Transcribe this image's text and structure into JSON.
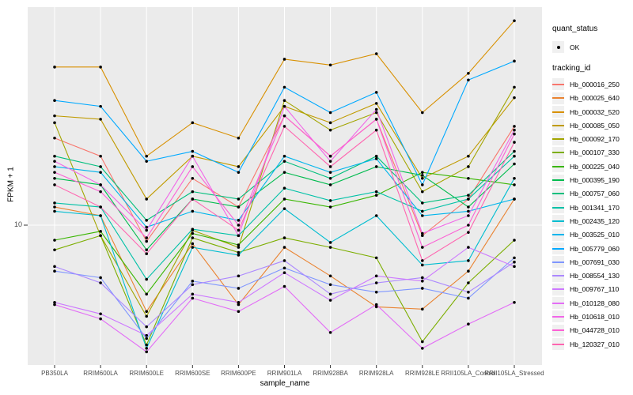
{
  "chart_data": {
    "type": "line",
    "title": "",
    "xlabel": "sample_name",
    "ylabel": "FPKM + 1",
    "y_scale": "log10",
    "y_tick_labels": [
      "10"
    ],
    "grid": "vertical gridline per category, horizontal gridline at y=10, gray panel",
    "legend_position": "right",
    "point_shape": "filled black dot at every data point (quant_status OK)",
    "categories": [
      "PB350LA",
      "RRIM600LA",
      "RRIM600LE",
      "RRIM600SE",
      "RRIM600PE",
      "RRIM901LA",
      "RRIM928BA",
      "RRIM928LA",
      "RRIM928LE",
      "RRII105LA_Control",
      "RRII105LA_Stressed"
    ],
    "series": [
      {
        "name": "Hb_000016_250",
        "color": "#F8766D",
        "values": [
          24,
          20,
          8.5,
          16,
          12,
          30,
          20,
          29,
          9,
          13,
          27
        ]
      },
      {
        "name": "Hb_000025_640",
        "color": "#EA8331",
        "values": [
          12,
          11,
          4.2,
          8.3,
          4.5,
          8,
          6,
          4.4,
          4.3,
          6.3,
          13
        ]
      },
      {
        "name": "Hb_000032_520",
        "color": "#D89000",
        "values": [
          49,
          49,
          20,
          28,
          24,
          53,
          50,
          56,
          31,
          46,
          78
        ]
      },
      {
        "name": "Hb_000085_050",
        "color": "#C09B00",
        "values": [
          30,
          29,
          13,
          20,
          18,
          33,
          28,
          34,
          16,
          20,
          36
        ]
      },
      {
        "name": "Hb_000092_170",
        "color": "#A3A500",
        "values": [
          28,
          9,
          4,
          9.5,
          8,
          35,
          26,
          31,
          14,
          18,
          40
        ]
      },
      {
        "name": "Hb_000107_330",
        "color": "#7CAE00",
        "values": [
          7.8,
          9,
          3,
          8.8,
          7.6,
          8.8,
          8,
          7.2,
          3.1,
          5.6,
          8.6
        ]
      },
      {
        "name": "Hb_000225_040",
        "color": "#39B600",
        "values": [
          8.6,
          9.4,
          5,
          9.2,
          8.2,
          13,
          12,
          13.5,
          17,
          16,
          15
        ]
      },
      {
        "name": "Hb_000395_190",
        "color": "#00BB4E",
        "values": [
          16,
          15,
          7.8,
          13,
          12,
          17,
          15,
          18,
          16.5,
          12,
          18.5
        ]
      },
      {
        "name": "Hb_000757_060",
        "color": "#00BF7D",
        "values": [
          20,
          18,
          10.5,
          14,
          13,
          19,
          16,
          20,
          12.5,
          13.5,
          21
        ]
      },
      {
        "name": "Hb_001341_170",
        "color": "#00C1A7",
        "values": [
          12.5,
          12,
          5.8,
          9.6,
          9,
          14.5,
          12.8,
          14,
          11.5,
          13,
          20
        ]
      },
      {
        "name": "Hb_002435_120",
        "color": "#00BDD0",
        "values": [
          11.5,
          11,
          2.9,
          8,
          7.4,
          11.8,
          8.4,
          11,
          6.7,
          7,
          16
        ]
      },
      {
        "name": "Hb_003525_010",
        "color": "#00B5EC",
        "values": [
          18,
          17,
          9.8,
          11.5,
          10.5,
          20,
          17,
          19.5,
          11,
          11.5,
          13
        ]
      },
      {
        "name": "Hb_005779_060",
        "color": "#00A9FF",
        "values": [
          35,
          33,
          19,
          21,
          17,
          40,
          31,
          38,
          15,
          43,
          52
        ]
      },
      {
        "name": "Hb_007691_030",
        "color": "#7F96FF",
        "values": [
          6.3,
          5.9,
          3.2,
          5.7,
          5.3,
          6.5,
          5.5,
          5.1,
          5.3,
          4.8,
          7.2
        ]
      },
      {
        "name": "Hb_008554_130",
        "color": "#AC88FF",
        "values": [
          6.6,
          5.6,
          3.6,
          5.5,
          6,
          7,
          5,
          5.6,
          5.9,
          5.1,
          6.9
        ]
      },
      {
        "name": "Hb_009767_110",
        "color": "#CD79FF",
        "values": [
          4.6,
          4.1,
          3.3,
          5,
          4.6,
          6.2,
          4.7,
          6,
          5.7,
          8,
          6.6
        ]
      },
      {
        "name": "Hb_010128_080",
        "color": "#E36EF6",
        "values": [
          4.5,
          3.9,
          2.8,
          4.8,
          4.2,
          5.4,
          3.4,
          4.5,
          2.9,
          3.7,
          4.6
        ]
      },
      {
        "name": "Hb_010618_010",
        "color": "#F166E8",
        "values": [
          19,
          15,
          9.5,
          20,
          9,
          33,
          19,
          32,
          9.2,
          11,
          26
        ]
      },
      {
        "name": "Hb_044728_010",
        "color": "#FC61D5",
        "values": [
          17,
          14,
          8.8,
          18,
          10,
          30,
          20,
          29,
          8,
          10,
          25
        ]
      },
      {
        "name": "Hb_120327_010",
        "color": "#FF65B0",
        "values": [
          15,
          12,
          7.5,
          13,
          9.5,
          27,
          18,
          26,
          7,
          9.3,
          23
        ]
      }
    ]
  },
  "legend": {
    "quant_status_title": "quant_status",
    "quant_status_items": [
      "OK"
    ],
    "tracking_id_title": "tracking_id"
  },
  "colors": {
    "panel_background": "#EBEBEB",
    "gridline": "#FFFFFF",
    "axis_text": "#4D4D4D",
    "tick_mark": "#333333",
    "point": "#000000",
    "legend_key_background": "#F0F0F0"
  }
}
